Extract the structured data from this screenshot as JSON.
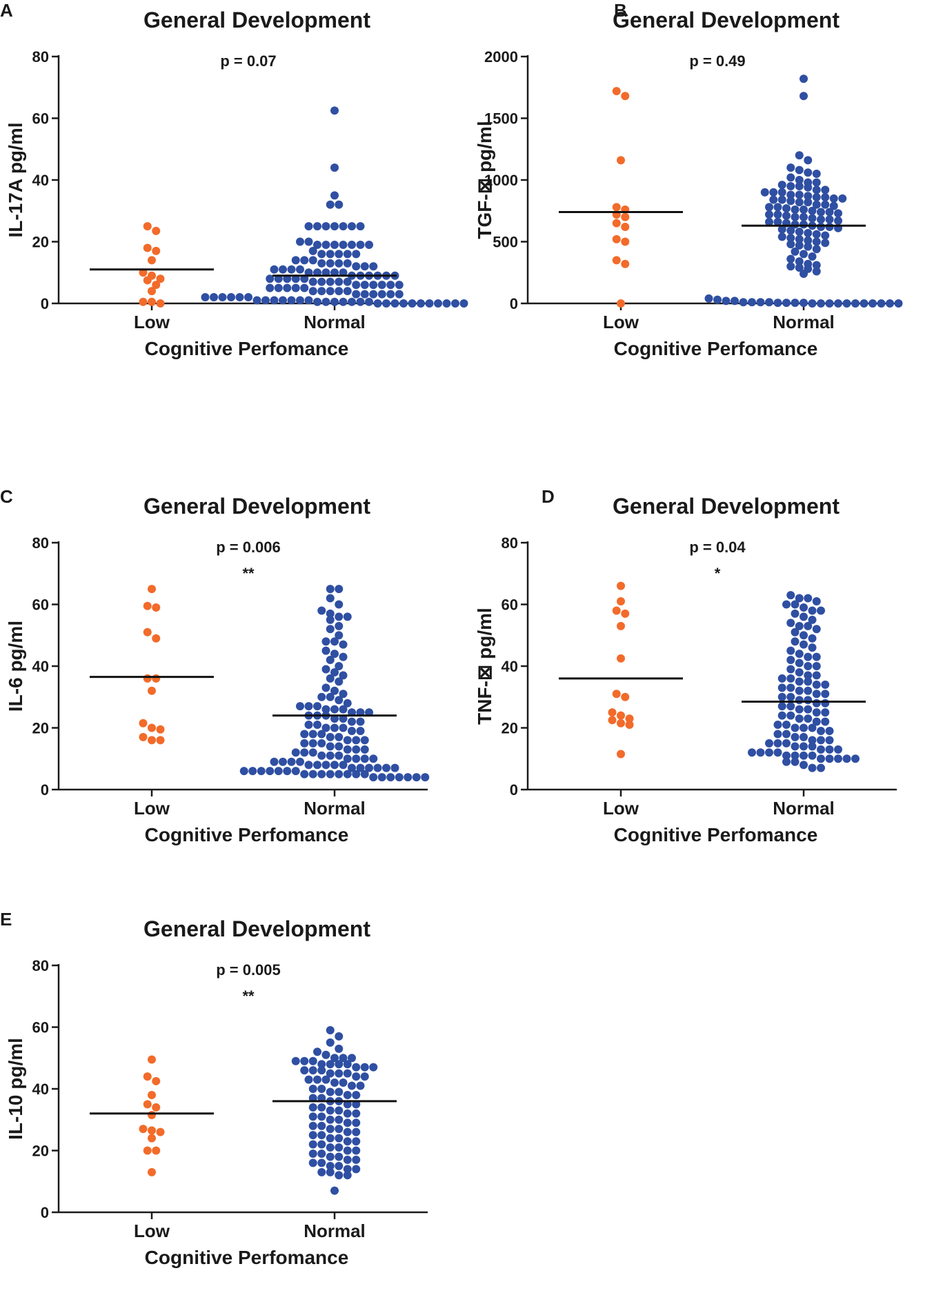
{
  "colors": {
    "low": "#f26b2a",
    "normal": "#2f4fa2",
    "axis": "#1a1a1a",
    "mean": "#111111"
  },
  "chart_data": [
    {
      "panel": "A",
      "type": "scatter",
      "title": "General Development",
      "ylabel": "IL-17A pg/ml",
      "xlabel": "Cognitive Perfomance",
      "categories": [
        "Low",
        "Normal"
      ],
      "yticks": [
        "0",
        "20",
        "40",
        "60",
        "80"
      ],
      "ylim": [
        0,
        80
      ],
      "pvalue": "p = 0.07",
      "stars": "",
      "means": [
        11,
        9
      ],
      "series": [
        {
          "name": "Low",
          "values": [
            25,
            23.5,
            18,
            17,
            14,
            10,
            9,
            8,
            7.5,
            6,
            4,
            0.5,
            0.5,
            0
          ]
        },
        {
          "name": "Normal",
          "values": [
            62.5,
            44,
            35,
            32,
            32,
            25,
            25,
            25,
            25,
            25,
            25,
            25,
            20,
            20,
            19,
            19,
            19,
            19,
            19,
            19,
            19,
            17,
            16,
            16,
            16,
            16,
            16,
            14,
            14,
            14,
            13,
            13,
            13,
            13,
            12,
            12,
            12,
            11,
            11,
            11,
            11,
            10,
            10,
            10,
            10,
            10,
            9,
            9,
            9,
            9,
            9,
            9,
            8,
            8,
            8,
            8,
            8,
            7,
            7,
            7,
            7,
            7,
            6,
            6,
            6,
            6,
            6,
            6,
            5,
            5,
            5,
            5,
            5,
            4,
            4,
            4,
            4,
            4,
            3,
            3,
            3,
            3,
            3,
            3,
            2,
            2,
            2,
            2,
            2,
            2,
            1,
            1,
            1,
            1,
            1,
            1,
            1,
            0.5,
            0.5,
            0.5,
            0.5,
            0.5,
            0.5,
            0.5,
            0,
            0,
            0,
            0,
            0,
            0,
            0,
            0,
            0,
            0,
            0
          ]
        }
      ]
    },
    {
      "panel": "B",
      "type": "scatter",
      "title": "General Development",
      "ylabel": "TGF-⊠ pg/ml",
      "xlabel": "Cognitive Perfomance",
      "categories": [
        "Low",
        "Normal"
      ],
      "yticks": [
        "0",
        "500",
        "1000",
        "1500",
        "2000"
      ],
      "ylim": [
        0,
        2000
      ],
      "pvalue": "p = 0.49",
      "stars": "",
      "means": [
        740,
        630
      ],
      "series": [
        {
          "name": "Low",
          "values": [
            1720,
            1680,
            1160,
            780,
            760,
            720,
            700,
            650,
            620,
            520,
            500,
            350,
            320,
            0
          ]
        },
        {
          "name": "Normal",
          "values": [
            1820,
            1680,
            1200,
            1160,
            1100,
            1080,
            1060,
            1050,
            1020,
            1000,
            980,
            980,
            960,
            950,
            950,
            940,
            920,
            920,
            900,
            900,
            900,
            880,
            880,
            870,
            860,
            860,
            850,
            850,
            840,
            840,
            830,
            820,
            820,
            800,
            800,
            790,
            780,
            780,
            770,
            760,
            760,
            750,
            740,
            740,
            730,
            720,
            720,
            710,
            700,
            700,
            690,
            680,
            680,
            670,
            660,
            660,
            650,
            640,
            640,
            630,
            620,
            620,
            610,
            600,
            590,
            580,
            570,
            560,
            550,
            540,
            530,
            520,
            510,
            500,
            490,
            480,
            470,
            460,
            440,
            420,
            400,
            380,
            360,
            340,
            320,
            310,
            300,
            290,
            280,
            260,
            240,
            40,
            30,
            20,
            20,
            10,
            10,
            10,
            10,
            5,
            5,
            5,
            5,
            0,
            0,
            0,
            0,
            0,
            0,
            0,
            0,
            0,
            0,
            0
          ]
        }
      ]
    },
    {
      "panel": "C",
      "type": "scatter",
      "title": "General Development",
      "ylabel": "IL-6 pg/ml",
      "xlabel": "Cognitive Perfomance",
      "categories": [
        "Low",
        "Normal"
      ],
      "yticks": [
        "0",
        "20",
        "40",
        "60",
        "80"
      ],
      "ylim": [
        0,
        80
      ],
      "pvalue": "p = 0.006",
      "stars": "**",
      "means": [
        36.5,
        24
      ],
      "series": [
        {
          "name": "Low",
          "values": [
            65,
            59.5,
            59,
            51,
            49,
            36,
            36,
            32,
            21.5,
            20,
            19.5,
            17,
            16,
            16
          ]
        },
        {
          "name": "Normal",
          "values": [
            65,
            65,
            62,
            60,
            58,
            57,
            56,
            56,
            55,
            53,
            52,
            50,
            48,
            48,
            47,
            45,
            44,
            43,
            42,
            40,
            39,
            38,
            37,
            36,
            35,
            33,
            32,
            31,
            30,
            30,
            29,
            28,
            27,
            27,
            27,
            26,
            26,
            26,
            25,
            25,
            25,
            24,
            24,
            24,
            23,
            23,
            22,
            22,
            21,
            21,
            20,
            20,
            20,
            19,
            19,
            18,
            18,
            18,
            17,
            17,
            16,
            16,
            16,
            15,
            15,
            15,
            14,
            14,
            13,
            13,
            13,
            12,
            12,
            12,
            11,
            11,
            11,
            10,
            10,
            10,
            10,
            9,
            9,
            9,
            9,
            8,
            8,
            8,
            8,
            8,
            7,
            7,
            7,
            7,
            7,
            7,
            6,
            6,
            6,
            6,
            6,
            6,
            6,
            5,
            5,
            5,
            5,
            5,
            5,
            5,
            5,
            4,
            4,
            4,
            4,
            4,
            4,
            4
          ]
        }
      ]
    },
    {
      "panel": "D",
      "type": "scatter",
      "title": "General Development",
      "ylabel": "TNF-⊠ pg/ml",
      "xlabel": "Cognitive Perfomance",
      "categories": [
        "Low",
        "Normal"
      ],
      "yticks": [
        "0",
        "20",
        "40",
        "60",
        "80"
      ],
      "ylim": [
        0,
        80
      ],
      "pvalue": "p = 0.04",
      "stars": "*",
      "means": [
        36,
        28.5
      ],
      "series": [
        {
          "name": "Low",
          "values": [
            66,
            61,
            58,
            57,
            53,
            42.5,
            31,
            30,
            25,
            24,
            23,
            22.5,
            21.5,
            21,
            11.5
          ]
        },
        {
          "name": "Normal",
          "values": [
            63,
            62,
            62,
            61,
            60,
            60,
            59,
            58,
            58,
            57,
            56,
            55,
            54,
            53,
            53,
            52,
            51,
            50,
            49,
            48,
            47,
            46,
            45,
            44,
            43,
            43,
            42,
            41,
            40,
            40,
            39,
            38,
            37,
            37,
            36,
            36,
            35,
            35,
            34,
            34,
            33,
            33,
            32,
            32,
            31,
            31,
            30,
            30,
            29,
            29,
            28,
            28,
            27,
            27,
            26,
            26,
            25,
            25,
            24,
            24,
            23,
            23,
            22,
            22,
            21,
            21,
            20,
            20,
            20,
            19,
            19,
            18,
            18,
            17,
            17,
            16,
            16,
            16,
            15,
            15,
            15,
            14,
            14,
            14,
            13,
            13,
            13,
            12,
            12,
            12,
            12,
            11,
            11,
            11,
            11,
            10,
            10,
            10,
            10,
            10,
            9,
            9,
            8,
            7,
            7
          ]
        }
      ]
    },
    {
      "panel": "E",
      "type": "scatter",
      "title": "General Development",
      "ylabel": "IL-10 pg/ml",
      "xlabel": "Cognitive Perfomance",
      "categories": [
        "Low",
        "Normal"
      ],
      "yticks": [
        "0",
        "20",
        "40",
        "60",
        "80"
      ],
      "ylim": [
        0,
        80
      ],
      "pvalue": "p = 0.005",
      "stars": "**",
      "means": [
        32,
        36
      ],
      "series": [
        {
          "name": "Low",
          "values": [
            49.5,
            44,
            42.5,
            38,
            35,
            34,
            31.5,
            27,
            26.5,
            26,
            24,
            20,
            20,
            13
          ]
        },
        {
          "name": "Normal",
          "values": [
            59,
            57,
            55,
            53,
            52,
            51,
            50,
            50,
            50,
            49,
            49,
            49,
            48,
            48,
            48,
            48,
            47,
            47,
            47,
            46,
            46,
            46,
            45,
            45,
            45,
            44,
            44,
            43,
            43,
            43,
            42,
            42,
            41,
            41,
            40,
            40,
            39,
            39,
            38,
            38,
            37,
            37,
            36,
            36,
            35,
            35,
            34,
            34,
            33,
            33,
            32,
            32,
            31,
            31,
            30,
            30,
            29,
            29,
            28,
            28,
            27,
            27,
            26,
            26,
            25,
            25,
            24,
            24,
            23,
            23,
            22,
            22,
            21,
            21,
            20,
            20,
            19,
            19,
            18,
            18,
            17,
            17,
            16,
            16,
            15,
            15,
            14,
            14,
            13,
            13,
            12,
            12,
            7
          ]
        }
      ]
    }
  ]
}
